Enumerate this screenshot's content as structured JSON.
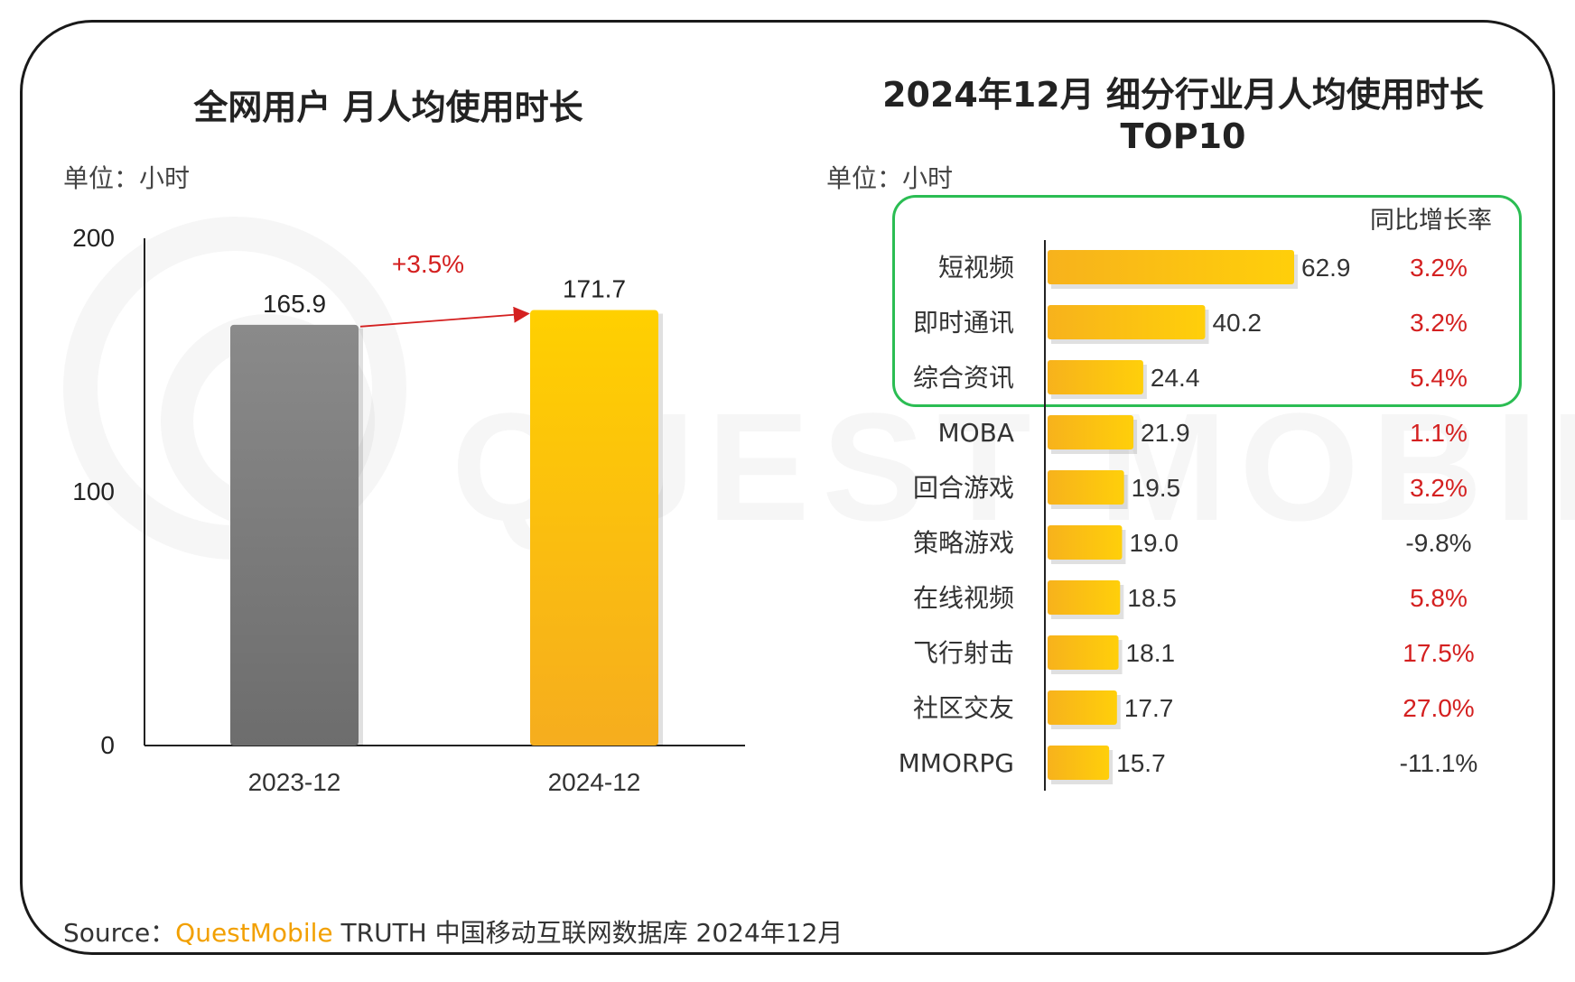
{
  "watermark": "QUEST MOBILE",
  "source": {
    "prefix": "Source：",
    "brand": "QuestMobile",
    "suffix": " TRUTH 中国移动互联网数据库 2024年12月"
  },
  "colors": {
    "gray_bar": "#7a7a7a",
    "yellow_bar": "#fbbf14",
    "positive": "#d42020",
    "negative": "#333333",
    "highlight": "#2bbd53"
  },
  "chart_data": [
    {
      "type": "bar",
      "title": "全网用户 月人均使用时长",
      "unit": "单位：小时",
      "categories": [
        "2023-12",
        "2024-12"
      ],
      "values": [
        165.9,
        171.7
      ],
      "value_labels": [
        "165.9",
        "171.7"
      ],
      "bar_colors": [
        "#7a7a7a",
        "#fbbf14"
      ],
      "ylim": [
        0,
        200
      ],
      "yticks": [
        "0",
        "100",
        "200"
      ],
      "change_label": "+3.5%",
      "grid": false
    },
    {
      "type": "bar",
      "orientation": "horizontal",
      "title": "2024年12月 细分行业月人均使用时长",
      "title_line2": "TOP10",
      "unit": "单位：小时",
      "growth_header": "同比增长率",
      "categories": [
        "短视频",
        "即时通讯",
        "综合资讯",
        "MOBA",
        "回合游戏",
        "策略游戏",
        "在线视频",
        "飞行射击",
        "社区交友",
        "MMORPG"
      ],
      "values": [
        62.9,
        40.2,
        24.4,
        21.9,
        19.5,
        19.0,
        18.5,
        18.1,
        17.7,
        15.7
      ],
      "value_labels": [
        "62.9",
        "40.2",
        "24.4",
        "21.9",
        "19.5",
        "19.0",
        "18.5",
        "18.1",
        "17.7",
        "15.7"
      ],
      "growth": [
        "3.2%",
        "3.2%",
        "5.4%",
        "1.1%",
        "3.2%",
        "-9.8%",
        "5.8%",
        "17.5%",
        "27.0%",
        "-11.1%"
      ],
      "highlighted_top": 3,
      "grid": false
    }
  ]
}
